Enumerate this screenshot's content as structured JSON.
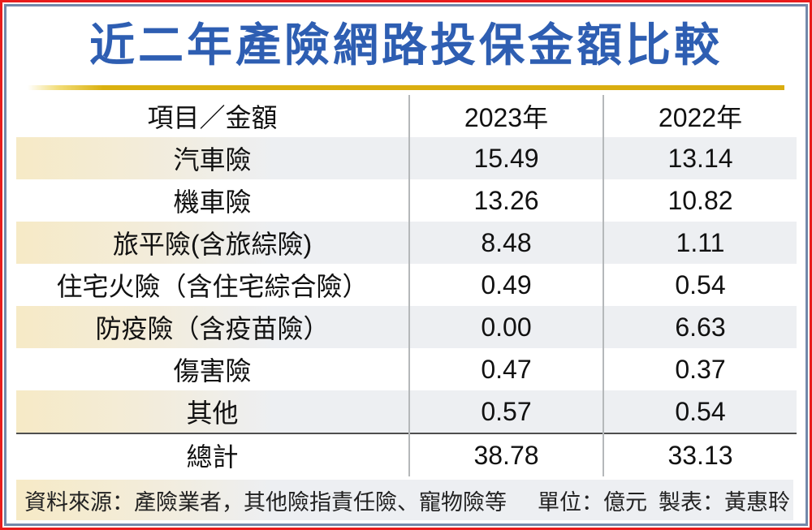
{
  "title": "近二年產險網路投保金額比較",
  "table": {
    "headers": [
      "項目／金額",
      "2023年",
      "2022年"
    ],
    "rows": [
      {
        "label": "汽車險",
        "y2023": "15.49",
        "y2022": "13.14"
      },
      {
        "label": "機車險",
        "y2023": "13.26",
        "y2022": "10.82"
      },
      {
        "label": "旅平險(含旅綜險)",
        "y2023": "8.48",
        "y2022": "1.11"
      },
      {
        "label": "住宅火險（含住宅綜合險）",
        "y2023": "0.49",
        "y2022": "0.54"
      },
      {
        "label": "防疫險（含疫苗險）",
        "y2023": "0.00",
        "y2022": "6.63"
      },
      {
        "label": "傷害險",
        "y2023": "0.47",
        "y2022": "0.37"
      },
      {
        "label": "其他",
        "y2023": "0.57",
        "y2022": "0.54"
      }
    ],
    "total": {
      "label": "總計",
      "y2023": "38.78",
      "y2022": "33.13"
    }
  },
  "footer": {
    "source": "資料來源：產險業者，其他險指責任險、寵物險等",
    "unit": "單位：億元",
    "credit": "製表：黃惠聆"
  },
  "colors": {
    "title_blue": "#2e5eb2",
    "outer_border_red": "#e81c1c",
    "inner_border_blue": "#7288aa",
    "gold_rule": "#d9ac10",
    "stripe_cream": "#f6eac6",
    "stripe_gray": "#edeff2",
    "divider_gray": "#b5b8ba",
    "total_rule_gray": "#4f4f4f"
  },
  "chart_data": {
    "type": "table",
    "title": "近二年產險網路投保金額比較",
    "categories": [
      "汽車險",
      "機車險",
      "旅平險(含旅綜險)",
      "住宅火險（含住宅綜合險）",
      "防疫險（含疫苗險）",
      "傷害險",
      "其他",
      "總計"
    ],
    "series": [
      {
        "name": "2023年",
        "values": [
          15.49,
          13.26,
          8.48,
          0.49,
          0.0,
          0.47,
          0.57,
          38.78
        ]
      },
      {
        "name": "2022年",
        "values": [
          13.14,
          10.82,
          1.11,
          0.54,
          6.63,
          0.37,
          0.54,
          33.13
        ]
      }
    ],
    "unit": "億元",
    "source": "產險業者，其他險指責任險、寵物險等",
    "credit": "黃惠聆"
  }
}
